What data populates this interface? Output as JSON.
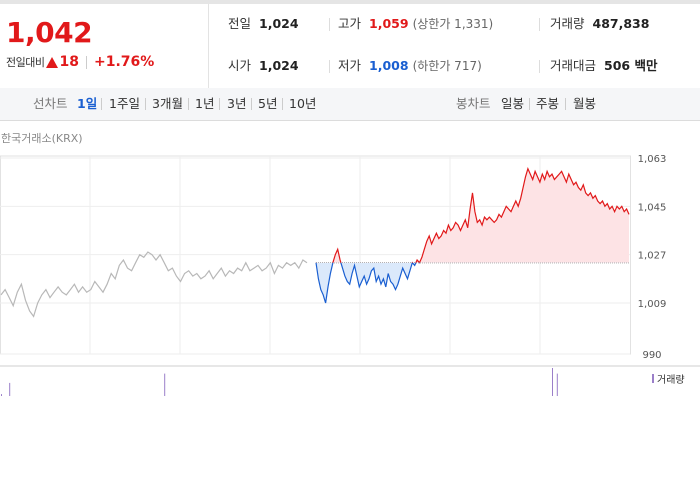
{
  "quote": {
    "price": "1,042",
    "change_label": "전일대비",
    "change_value": "18",
    "change_rate": "+1.76%",
    "prev_close_label": "전일",
    "prev_close": "1,024",
    "open_label": "시가",
    "open": "1,024",
    "high_label": "고가",
    "high": "1,059",
    "high_limit": "(상한가 1,331)",
    "low_label": "저가",
    "low": "1,008",
    "low_limit": "(하한가 717)",
    "volume_label": "거래량",
    "volume": "487,838",
    "amount_label": "거래대금",
    "amount": "506 백만"
  },
  "controls": {
    "line_chart_label": "선차트",
    "line_periods": [
      "1일",
      "1주일",
      "3개월",
      "1년",
      "3년",
      "5년",
      "10년"
    ],
    "selected_line_period": "1일",
    "candle_chart_label": "봉차트",
    "candle_periods": [
      "일봉",
      "주봉",
      "월봉"
    ]
  },
  "chart_data": {
    "type": "line",
    "source": "한국거래소(KRX)",
    "y_ticks": [
      "1,063",
      "1,045",
      "1,027",
      "1,009",
      "990"
    ],
    "ylim": [
      990,
      1063
    ],
    "baseline": 1024,
    "legend_volume": "거래량",
    "colors": {
      "up": "#e1191a",
      "down": "#1a5fd1",
      "gray": "#b8b8b8",
      "up_fill": "#fde3e5",
      "down_fill": "#dbe9fb",
      "volume": "#9b7fc9"
    },
    "series_previous": [
      1012,
      1014,
      1011,
      1008,
      1013,
      1016,
      1010,
      1006,
      1004,
      1009,
      1012,
      1014,
      1011,
      1013,
      1015,
      1013,
      1012,
      1014,
      1016,
      1013,
      1015,
      1013,
      1014,
      1017,
      1015,
      1013,
      1016,
      1020,
      1018,
      1023,
      1025,
      1022,
      1021,
      1024,
      1027,
      1026,
      1028,
      1027,
      1025,
      1027,
      1024,
      1021,
      1022,
      1019,
      1017,
      1020,
      1021,
      1019,
      1020,
      1018,
      1019,
      1021,
      1018,
      1020,
      1022,
      1019,
      1021,
      1020,
      1022,
      1021,
      1024,
      1021,
      1022,
      1023,
      1021,
      1022,
      1024,
      1020,
      1023,
      1022,
      1024,
      1023,
      1024,
      1022,
      1025,
      1024
    ],
    "series_today": [
      1024,
      1018,
      1014,
      1012,
      1009,
      1015,
      1020,
      1024,
      1027,
      1029,
      1025,
      1022,
      1019,
      1017,
      1016,
      1020,
      1023,
      1019,
      1015,
      1017,
      1019,
      1016,
      1018,
      1021,
      1022,
      1017,
      1019,
      1016,
      1018,
      1015,
      1020,
      1017,
      1016,
      1014,
      1016,
      1019,
      1022,
      1020,
      1018,
      1021,
      1024,
      1023,
      1025,
      1024,
      1026,
      1029,
      1032,
      1034,
      1031,
      1033,
      1035,
      1033,
      1034,
      1036,
      1035,
      1038,
      1036,
      1037,
      1039,
      1038,
      1036,
      1038,
      1040,
      1037,
      1044,
      1050,
      1043,
      1039,
      1040,
      1038,
      1041,
      1040,
      1041,
      1040,
      1039,
      1040,
      1042,
      1041,
      1043,
      1045,
      1044,
      1043,
      1045,
      1047,
      1045,
      1048,
      1052,
      1056,
      1059,
      1057,
      1055,
      1058,
      1056,
      1054,
      1057,
      1055,
      1058,
      1056,
      1057,
      1055,
      1056,
      1057,
      1058,
      1056,
      1054,
      1057,
      1055,
      1053,
      1054,
      1052,
      1051,
      1053,
      1050,
      1049,
      1050,
      1048,
      1049,
      1047,
      1046,
      1047,
      1045,
      1046,
      1044,
      1045,
      1043,
      1045,
      1044,
      1045,
      1043,
      1044,
      1042
    ],
    "volume_prev": [
      2,
      0,
      14,
      0,
      0,
      0,
      0,
      0,
      0,
      0,
      0,
      0,
      0,
      0,
      0,
      0,
      0,
      0,
      0,
      0,
      0,
      0,
      0,
      0,
      0,
      0,
      0,
      0,
      0,
      0,
      0,
      0,
      0,
      0,
      0,
      0,
      0,
      0,
      0,
      0,
      24,
      0,
      0,
      0,
      0,
      0,
      0,
      0,
      0,
      0,
      0,
      0,
      0,
      0,
      0,
      0,
      0,
      0,
      0,
      0,
      0,
      0,
      0,
      0,
      0,
      0,
      0,
      0,
      0,
      0,
      0,
      0,
      0,
      0,
      0,
      0
    ],
    "volume_today": [
      0,
      0,
      0,
      0,
      0,
      0,
      0,
      0,
      0,
      0,
      0,
      0,
      0,
      0,
      0,
      0,
      0,
      0,
      0,
      0,
      0,
      0,
      0,
      0,
      0,
      0,
      0,
      0,
      0,
      0,
      0,
      0,
      0,
      0,
      0,
      0,
      0,
      0,
      0,
      0,
      0,
      0,
      0,
      0,
      0,
      0,
      0,
      0,
      0,
      0,
      0,
      0,
      0,
      0,
      0,
      0,
      0,
      0,
      0,
      0,
      0,
      0,
      0,
      0,
      0,
      0,
      0,
      0,
      0,
      0,
      0,
      0,
      0,
      0,
      0,
      0,
      0,
      0,
      0,
      0,
      0,
      0,
      0,
      0,
      0,
      0,
      0,
      0,
      0,
      0,
      0,
      0,
      0,
      0,
      0,
      0,
      0,
      0,
      30,
      0,
      24,
      0,
      0,
      0,
      0,
      0,
      0,
      0,
      0,
      0,
      0,
      0,
      0,
      0,
      0,
      0,
      0,
      0,
      0,
      0,
      0,
      0,
      0,
      0,
      0,
      0,
      0,
      0,
      0,
      0,
      0,
      0
    ]
  }
}
